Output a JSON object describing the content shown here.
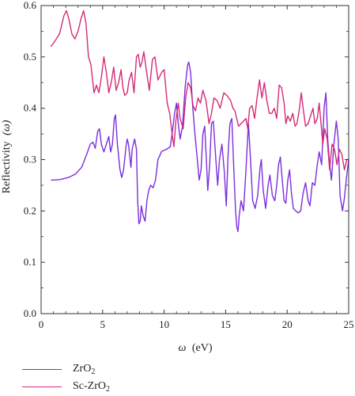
{
  "chart_data": {
    "type": "line",
    "xlabel_symbol": "ω",
    "xlabel_unit": "(eV)",
    "ylabel_text": "Reflectivity",
    "ylabel_symbol": "(ω)",
    "xlim": [
      0,
      25
    ],
    "ylim": [
      0,
      0.6
    ],
    "x_ticks": [
      "0",
      "5",
      "10",
      "15",
      "20",
      "25"
    ],
    "y_ticks": [
      "0.0",
      "0.1",
      "0.2",
      "0.3",
      "0.4",
      "0.5",
      "0.6"
    ],
    "grid": false,
    "legend_position": "bottom-left",
    "series": [
      {
        "name_main": "ZrO",
        "name_sub": "2",
        "color": "#7b2fdc",
        "points": [
          [
            0.8,
            0.26
          ],
          [
            1.5,
            0.261
          ],
          [
            2.2,
            0.265
          ],
          [
            2.8,
            0.272
          ],
          [
            3.3,
            0.285
          ],
          [
            3.7,
            0.31
          ],
          [
            4.0,
            0.33
          ],
          [
            4.2,
            0.334
          ],
          [
            4.4,
            0.322
          ],
          [
            4.6,
            0.355
          ],
          [
            4.75,
            0.36
          ],
          [
            4.9,
            0.33
          ],
          [
            5.1,
            0.315
          ],
          [
            5.3,
            0.33
          ],
          [
            5.5,
            0.345
          ],
          [
            5.65,
            0.315
          ],
          [
            5.8,
            0.33
          ],
          [
            5.95,
            0.38
          ],
          [
            6.05,
            0.387
          ],
          [
            6.2,
            0.33
          ],
          [
            6.4,
            0.282
          ],
          [
            6.55,
            0.265
          ],
          [
            6.7,
            0.28
          ],
          [
            6.9,
            0.325
          ],
          [
            7.0,
            0.34
          ],
          [
            7.1,
            0.33
          ],
          [
            7.3,
            0.285
          ],
          [
            7.4,
            0.32
          ],
          [
            7.6,
            0.34
          ],
          [
            7.75,
            0.32
          ],
          [
            7.85,
            0.22
          ],
          [
            7.95,
            0.175
          ],
          [
            8.05,
            0.18
          ],
          [
            8.15,
            0.21
          ],
          [
            8.3,
            0.19
          ],
          [
            8.45,
            0.18
          ],
          [
            8.6,
            0.22
          ],
          [
            8.75,
            0.24
          ],
          [
            8.9,
            0.25
          ],
          [
            9.1,
            0.245
          ],
          [
            9.3,
            0.26
          ],
          [
            9.5,
            0.3
          ],
          [
            9.8,
            0.316
          ],
          [
            10.2,
            0.32
          ],
          [
            10.5,
            0.325
          ],
          [
            10.7,
            0.36
          ],
          [
            10.85,
            0.39
          ],
          [
            11.0,
            0.41
          ],
          [
            11.15,
            0.37
          ],
          [
            11.3,
            0.34
          ],
          [
            11.5,
            0.365
          ],
          [
            11.7,
            0.44
          ],
          [
            11.9,
            0.483
          ],
          [
            12.0,
            0.49
          ],
          [
            12.15,
            0.47
          ],
          [
            12.3,
            0.41
          ],
          [
            12.5,
            0.35
          ],
          [
            12.7,
            0.3
          ],
          [
            12.85,
            0.26
          ],
          [
            13.0,
            0.28
          ],
          [
            13.15,
            0.35
          ],
          [
            13.3,
            0.365
          ],
          [
            13.45,
            0.29
          ],
          [
            13.55,
            0.24
          ],
          [
            13.7,
            0.29
          ],
          [
            13.85,
            0.37
          ],
          [
            14.0,
            0.375
          ],
          [
            14.2,
            0.3
          ],
          [
            14.35,
            0.25
          ],
          [
            14.5,
            0.3
          ],
          [
            14.7,
            0.33
          ],
          [
            14.9,
            0.275
          ],
          [
            15.05,
            0.21
          ],
          [
            15.2,
            0.31
          ],
          [
            15.35,
            0.37
          ],
          [
            15.5,
            0.38
          ],
          [
            15.65,
            0.29
          ],
          [
            15.8,
            0.205
          ],
          [
            15.9,
            0.17
          ],
          [
            16.0,
            0.16
          ],
          [
            16.1,
            0.19
          ],
          [
            16.25,
            0.22
          ],
          [
            16.45,
            0.2
          ],
          [
            16.65,
            0.28
          ],
          [
            16.85,
            0.37
          ],
          [
            17.0,
            0.31
          ],
          [
            17.2,
            0.22
          ],
          [
            17.4,
            0.205
          ],
          [
            17.6,
            0.23
          ],
          [
            17.8,
            0.285
          ],
          [
            17.9,
            0.3
          ],
          [
            18.05,
            0.24
          ],
          [
            18.25,
            0.205
          ],
          [
            18.45,
            0.25
          ],
          [
            18.6,
            0.27
          ],
          [
            18.8,
            0.23
          ],
          [
            19.0,
            0.22
          ],
          [
            19.15,
            0.25
          ],
          [
            19.3,
            0.29
          ],
          [
            19.45,
            0.305
          ],
          [
            19.6,
            0.26
          ],
          [
            19.75,
            0.22
          ],
          [
            19.9,
            0.215
          ],
          [
            20.05,
            0.26
          ],
          [
            20.2,
            0.28
          ],
          [
            20.35,
            0.235
          ],
          [
            20.5,
            0.205
          ],
          [
            20.7,
            0.2
          ],
          [
            20.9,
            0.196
          ],
          [
            21.1,
            0.2
          ],
          [
            21.3,
            0.235
          ],
          [
            21.5,
            0.255
          ],
          [
            21.7,
            0.22
          ],
          [
            21.85,
            0.21
          ],
          [
            22.05,
            0.255
          ],
          [
            22.25,
            0.25
          ],
          [
            22.45,
            0.29
          ],
          [
            22.6,
            0.315
          ],
          [
            22.8,
            0.29
          ],
          [
            23.0,
            0.4
          ],
          [
            23.15,
            0.43
          ],
          [
            23.3,
            0.34
          ],
          [
            23.45,
            0.29
          ],
          [
            23.6,
            0.26
          ],
          [
            23.8,
            0.33
          ],
          [
            24.0,
            0.375
          ],
          [
            24.15,
            0.34
          ],
          [
            24.3,
            0.23
          ],
          [
            24.5,
            0.2
          ],
          [
            24.65,
            0.225
          ],
          [
            24.8,
            0.26
          ],
          [
            25.0,
            0.3
          ]
        ]
      },
      {
        "name_main": "Sc-ZrO",
        "name_sub": "2",
        "color": "#d42b78",
        "points": [
          [
            0.8,
            0.52
          ],
          [
            1.1,
            0.53
          ],
          [
            1.5,
            0.545
          ],
          [
            1.85,
            0.58
          ],
          [
            2.05,
            0.59
          ],
          [
            2.25,
            0.575
          ],
          [
            2.5,
            0.545
          ],
          [
            2.75,
            0.535
          ],
          [
            3.0,
            0.55
          ],
          [
            3.25,
            0.575
          ],
          [
            3.45,
            0.59
          ],
          [
            3.65,
            0.565
          ],
          [
            3.85,
            0.5
          ],
          [
            4.05,
            0.485
          ],
          [
            4.3,
            0.43
          ],
          [
            4.5,
            0.445
          ],
          [
            4.7,
            0.43
          ],
          [
            4.9,
            0.46
          ],
          [
            5.1,
            0.5
          ],
          [
            5.3,
            0.47
          ],
          [
            5.5,
            0.43
          ],
          [
            5.7,
            0.45
          ],
          [
            5.9,
            0.48
          ],
          [
            6.1,
            0.435
          ],
          [
            6.3,
            0.45
          ],
          [
            6.5,
            0.475
          ],
          [
            6.65,
            0.44
          ],
          [
            6.8,
            0.425
          ],
          [
            7.0,
            0.43
          ],
          [
            7.15,
            0.455
          ],
          [
            7.35,
            0.47
          ],
          [
            7.55,
            0.43
          ],
          [
            7.75,
            0.5
          ],
          [
            7.9,
            0.505
          ],
          [
            8.05,
            0.48
          ],
          [
            8.2,
            0.49
          ],
          [
            8.35,
            0.51
          ],
          [
            8.55,
            0.475
          ],
          [
            8.8,
            0.435
          ],
          [
            9.05,
            0.495
          ],
          [
            9.25,
            0.5
          ],
          [
            9.5,
            0.455
          ],
          [
            9.8,
            0.47
          ],
          [
            10.0,
            0.475
          ],
          [
            10.25,
            0.41
          ],
          [
            10.45,
            0.39
          ],
          [
            10.65,
            0.35
          ],
          [
            10.8,
            0.325
          ],
          [
            10.95,
            0.375
          ],
          [
            11.15,
            0.41
          ],
          [
            11.3,
            0.38
          ],
          [
            11.55,
            0.36
          ],
          [
            11.75,
            0.42
          ],
          [
            11.95,
            0.45
          ],
          [
            12.15,
            0.44
          ],
          [
            12.35,
            0.405
          ],
          [
            12.55,
            0.395
          ],
          [
            12.75,
            0.42
          ],
          [
            12.95,
            0.41
          ],
          [
            13.15,
            0.435
          ],
          [
            13.4,
            0.415
          ],
          [
            13.65,
            0.37
          ],
          [
            13.85,
            0.39
          ],
          [
            14.05,
            0.42
          ],
          [
            14.3,
            0.415
          ],
          [
            14.55,
            0.4
          ],
          [
            14.85,
            0.43
          ],
          [
            15.1,
            0.425
          ],
          [
            15.4,
            0.415
          ],
          [
            15.6,
            0.4
          ],
          [
            15.75,
            0.395
          ],
          [
            15.9,
            0.38
          ],
          [
            16.05,
            0.365
          ],
          [
            16.25,
            0.37
          ],
          [
            16.45,
            0.375
          ],
          [
            16.65,
            0.38
          ],
          [
            16.8,
            0.36
          ],
          [
            16.95,
            0.4
          ],
          [
            17.15,
            0.405
          ],
          [
            17.35,
            0.38
          ],
          [
            17.55,
            0.42
          ],
          [
            17.75,
            0.455
          ],
          [
            17.95,
            0.42
          ],
          [
            18.15,
            0.45
          ],
          [
            18.35,
            0.415
          ],
          [
            18.55,
            0.39
          ],
          [
            18.75,
            0.39
          ],
          [
            18.95,
            0.4
          ],
          [
            19.15,
            0.38
          ],
          [
            19.35,
            0.445
          ],
          [
            19.55,
            0.44
          ],
          [
            19.75,
            0.41
          ],
          [
            19.9,
            0.37
          ],
          [
            20.05,
            0.385
          ],
          [
            20.25,
            0.375
          ],
          [
            20.45,
            0.39
          ],
          [
            20.65,
            0.365
          ],
          [
            20.8,
            0.37
          ],
          [
            21.0,
            0.4
          ],
          [
            21.15,
            0.43
          ],
          [
            21.3,
            0.4
          ],
          [
            21.5,
            0.365
          ],
          [
            21.7,
            0.37
          ],
          [
            21.9,
            0.385
          ],
          [
            22.1,
            0.4
          ],
          [
            22.25,
            0.37
          ],
          [
            22.45,
            0.38
          ],
          [
            22.6,
            0.41
          ],
          [
            22.75,
            0.37
          ],
          [
            22.9,
            0.33
          ],
          [
            23.05,
            0.36
          ],
          [
            23.25,
            0.34
          ],
          [
            23.45,
            0.28
          ],
          [
            23.65,
            0.33
          ],
          [
            23.85,
            0.32
          ],
          [
            24.05,
            0.29
          ],
          [
            24.25,
            0.32
          ],
          [
            24.45,
            0.31
          ],
          [
            24.65,
            0.28
          ],
          [
            24.85,
            0.3
          ],
          [
            25.0,
            0.3
          ]
        ]
      }
    ]
  }
}
